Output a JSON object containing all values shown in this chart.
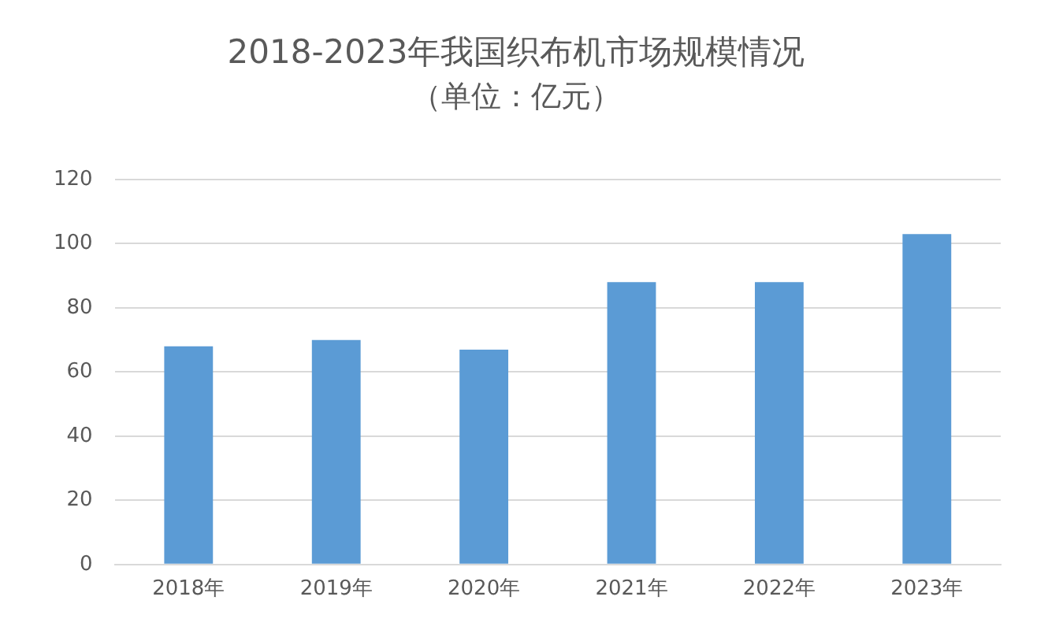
{
  "chart_data": {
    "type": "bar",
    "title": "2018-2023年我国织布机市场规模情况",
    "subtitle": "（单位：亿元）",
    "categories": [
      "2018年",
      "2019年",
      "2020年",
      "2021年",
      "2022年",
      "2023年"
    ],
    "values": [
      68,
      70,
      67,
      88,
      88,
      103
    ],
    "color": "#5b9bd5",
    "ylim": [
      0,
      120
    ],
    "yticks": [
      0,
      20,
      40,
      60,
      80,
      100,
      120
    ],
    "grid": "y",
    "legend": false
  }
}
